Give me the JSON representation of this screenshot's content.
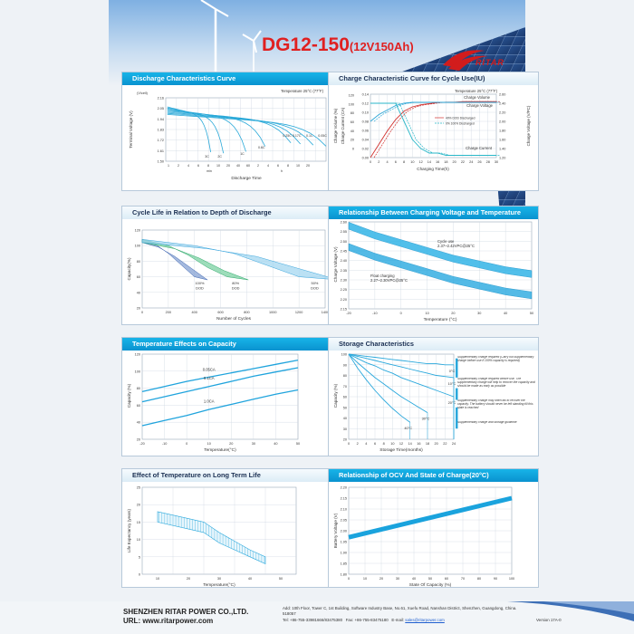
{
  "header": {
    "model": "DG12-150",
    "spec": "(12V150Ah)",
    "brand": "RITAR"
  },
  "panels": {
    "discharge": {
      "title": "Discharge Characteristics Curve",
      "temperature": "Temperature 25°C (77°F)",
      "yunit": "(V/cell)",
      "ylabel": "Terminal Voltage (V)",
      "yticks": [
        "2.16",
        "2.05",
        "1.94",
        "1.83",
        "1.72",
        "1.61",
        "1.50"
      ],
      "xticks_min": [
        "1",
        "2",
        "4",
        "6",
        "8",
        "10",
        "20",
        "40",
        "60"
      ],
      "xticks_h": [
        "2",
        "4",
        "6",
        "8",
        "10",
        "20"
      ],
      "unit_min": "min",
      "unit_h": "h",
      "xlabel": "Discharge  Time",
      "curve_labels": [
        "3C",
        "2C",
        "1C",
        "0.6C",
        "0.25C",
        "0.17C",
        "0.1C",
        "0.05C"
      ]
    },
    "charge": {
      "title": "Charge Characteristic Curve for Cycle Use(IU)",
      "temperature": "Temperature 25°C (77°F)",
      "ylabel_left1": "Charge Volume (%)",
      "ylabel_left2": "Charge Current (CA)",
      "ylabel_right": "Charge Voltage (V/PC)",
      "yticks_left1": [
        "120",
        "100",
        "80",
        "60",
        "40",
        "20",
        "0"
      ],
      "yticks_left2": [
        "0.14",
        "0.12",
        "0.10",
        "0.08",
        "0.06",
        "0.04",
        "0.02",
        "0.00"
      ],
      "yticks_right": [
        "2.60",
        "2.40",
        "2.20",
        "2.00",
        "1.80",
        "1.60",
        "1.40",
        "1.20"
      ],
      "xticks": [
        "0",
        "2",
        "4",
        "6",
        "8",
        "10",
        "12",
        "14",
        "16",
        "18",
        "20",
        "22",
        "24",
        "26",
        "28",
        "30"
      ],
      "xlabel": "Charging Time(h)",
      "labels": {
        "volume": "Charge Volume",
        "voltage": "Charge Voltage",
        "current": "Charge Current"
      },
      "legend": [
        "40% DOD Discharged",
        "0% 100% Discharged"
      ]
    },
    "cycle": {
      "title": "Cycle Life in Relation to Depth of Discharge",
      "ylabel": "Capacity(%)",
      "yticks": [
        "120",
        "100",
        "80",
        "60",
        "40",
        "20"
      ],
      "xticks": [
        "0",
        "200",
        "400",
        "600",
        "800",
        "1000",
        "1200",
        "1400"
      ],
      "xlabel": "Number of Cycles",
      "dod": [
        {
          "pct": "100%",
          "label": "DOD"
        },
        {
          "pct": "80%",
          "label": "DOD"
        },
        {
          "pct": "50%",
          "label": "DOD"
        }
      ]
    },
    "chargingvoltage": {
      "title": "Relationship Between Charging Voltage and Temperature",
      "ylabel": "Charge Voltage (V)",
      "yticks": [
        "2.60",
        "2.55",
        "2.50",
        "2.45",
        "2.40",
        "2.35",
        "2.30",
        "2.25",
        "2.20",
        "2.15"
      ],
      "xticks": [
        "-20",
        "-10",
        "0",
        "10",
        "20",
        "30",
        "40",
        "50"
      ],
      "xlabel": "Temperature (°C)",
      "cycle_label": "Cycle use",
      "cycle_range": "2.37~2.42VPC@25°C",
      "float_label": "Float charging",
      "float_range": "2.27~2.30VPC@25°C"
    },
    "tempcap": {
      "title": "Temperature Effects on Capacity",
      "ylabel": "Capacity (%)",
      "yticks": [
        "120",
        "100",
        "80",
        "60",
        "40",
        "20"
      ],
      "xticks": [
        "-20",
        "-10",
        "0",
        "10",
        "20",
        "30",
        "40",
        "50"
      ],
      "xlabel": "Temperature(°C)",
      "series": [
        "0.05CA",
        "0.1CA",
        "1.0CA"
      ]
    },
    "storage": {
      "title": "Storage Characteristics",
      "ylabel": "Capacity (%)",
      "yticks": [
        "100",
        "90",
        "80",
        "70",
        "60",
        "50",
        "40",
        "30",
        "20"
      ],
      "xticks": [
        "0",
        "2",
        "4",
        "6",
        "8",
        "10",
        "12",
        "14",
        "16",
        "18",
        "20",
        "22",
        "24"
      ],
      "xlabel": "Storage  Time(months)",
      "temps": [
        "40°C",
        "30°C",
        "20°C",
        "10°C",
        "0°C"
      ],
      "notes": [
        "Supplementary charge required (Carry out supplementary charge before use if 100% capacity is required)",
        "Supplementary charge required before use. The supplementary charge will help to recover the capacity and should be made as early as possible",
        "Supplementary charge may often fail to recover the capacity. The battery should never be left standing till this state is reached",
        "Supplementary charge and storage guideline"
      ]
    },
    "longterm": {
      "title": "Effect of Temperature on Long Term Life",
      "ylabel": "Life Expectancy (years)",
      "yticks": [
        "25",
        "20",
        "15",
        "10",
        "5",
        "0"
      ],
      "xticks": [
        "10",
        "20",
        "30",
        "40",
        "50"
      ],
      "xlabel": "Temperature(°C)"
    },
    "ocv": {
      "title": "Relationship of OCV And State of Charge(20°C)",
      "ylabel": "Battery Voltage (V)",
      "yticks": [
        "2.20",
        "2.15",
        "2.10",
        "2.05",
        "2.00",
        "1.95",
        "1.90",
        "1.85",
        "1.80"
      ],
      "xticks": [
        "0",
        "10",
        "20",
        "30",
        "40",
        "50",
        "60",
        "70",
        "80",
        "90",
        "100"
      ],
      "xlabel": "State Of Capacity (%)"
    }
  },
  "footer": {
    "company": "SHENZHEN RITAR POWER CO.,LTD.",
    "url": "URL: www.ritarpower.com",
    "address": "Add: 10th Floor, Tower C, 1st Building, Software Industry Base, No.61, Xuefu Road, Nanshan District, Shenzhen, Guangdong, China. 518057",
    "tel": "Tel: +86-755-33981666/83475380",
    "fax": "Fax: +86-755-83475180",
    "email_label": "E-mail:",
    "email": "sales@ritarpower.com",
    "version": "Version 17A-0"
  },
  "chart_data": [
    {
      "type": "line",
      "title": "Discharge Characteristics Curve",
      "ylabel": "Terminal Voltage (V)",
      "xlabel": "Discharge  Time",
      "ylim": [
        1.5,
        2.2
      ],
      "series": [
        {
          "name": "3C",
          "end_voltage": 1.6
        },
        {
          "name": "2C",
          "end_voltage": 1.6
        },
        {
          "name": "1C",
          "end_voltage": 1.63
        },
        {
          "name": "0.6C",
          "end_voltage": 1.7
        },
        {
          "name": "0.25C",
          "end_voltage": 1.75
        },
        {
          "name": "0.17C",
          "end_voltage": 1.75
        },
        {
          "name": "0.1C",
          "end_voltage": 1.75
        },
        {
          "name": "0.05C",
          "end_voltage": 1.75
        }
      ]
    },
    {
      "type": "line",
      "title": "Charge Characteristic Curve for Cycle Use(IU)",
      "xlabel": "Charging Time(h)",
      "x": [
        0,
        2,
        4,
        6,
        8,
        10,
        12,
        14,
        16,
        18,
        20,
        22,
        24,
        26,
        28,
        30
      ],
      "series": [
        {
          "name": "Charge Volume",
          "values": [
            0,
            25,
            50,
            72,
            88,
            96,
            100,
            102,
            104,
            105,
            105,
            106,
            106,
            106,
            106,
            106
          ]
        },
        {
          "name": "Charge Voltage",
          "values": [
            2.0,
            2.15,
            2.25,
            2.35,
            2.4,
            2.42,
            2.42,
            2.42,
            2.42,
            2.42,
            2.42,
            2.42,
            2.42,
            2.42,
            2.42,
            2.42
          ]
        },
        {
          "name": "Charge Current",
          "values": [
            0.12,
            0.12,
            0.12,
            0.12,
            0.08,
            0.04,
            0.02,
            0.01,
            0.01,
            0.005,
            0.005,
            0.005,
            0.005,
            0.005,
            0.005,
            0.005
          ]
        }
      ]
    },
    {
      "type": "area",
      "title": "Cycle Life in Relation to Depth of Discharge",
      "xlabel": "Number of Cycles",
      "ylabel": "Capacity(%)",
      "xlim": [
        0,
        1400
      ],
      "ylim": [
        20,
        120
      ],
      "series": [
        {
          "name": "100% DOD",
          "x": [
            0,
            100,
            200,
            300,
            400
          ],
          "values": [
            108,
            102,
            90,
            75,
            60
          ]
        },
        {
          "name": "80% DOD",
          "x": [
            0,
            200,
            350,
            500,
            650
          ],
          "values": [
            108,
            100,
            88,
            72,
            60
          ]
        },
        {
          "name": "50% DOD",
          "x": [
            0,
            400,
            700,
            950,
            1200
          ],
          "values": [
            108,
            100,
            90,
            75,
            60
          ]
        }
      ]
    },
    {
      "type": "area",
      "title": "Relationship Between Charging Voltage and Temperature",
      "xlabel": "Temperature (°C)",
      "ylabel": "Charge Voltage (V)",
      "x": [
        -20,
        -10,
        0,
        10,
        20,
        30,
        40,
        50
      ],
      "ylim": [
        2.15,
        2.6
      ],
      "series": [
        {
          "name": "Cycle use",
          "values": [
            2.58,
            2.53,
            2.49,
            2.45,
            2.41,
            2.38,
            2.35,
            2.33
          ]
        },
        {
          "name": "Float charging",
          "values": [
            2.47,
            2.42,
            2.38,
            2.34,
            2.3,
            2.27,
            2.24,
            2.22
          ]
        }
      ]
    },
    {
      "type": "line",
      "title": "Temperature Effects on Capacity",
      "xlabel": "Temperature(°C)",
      "ylabel": "Capacity (%)",
      "x": [
        -20,
        -10,
        0,
        10,
        20,
        30,
        40,
        50
      ],
      "ylim": [
        20,
        120
      ],
      "series": [
        {
          "name": "0.05CA",
          "values": [
            76,
            82,
            88,
            93,
            98,
            103,
            108,
            113
          ]
        },
        {
          "name": "0.1CA",
          "values": [
            64,
            70,
            76,
            82,
            88,
            94,
            99,
            104
          ]
        },
        {
          "name": "1.0CA",
          "values": [
            36,
            42,
            48,
            55,
            61,
            67,
            73,
            78
          ]
        }
      ]
    },
    {
      "type": "line",
      "title": "Storage Characteristics",
      "xlabel": "Storage  Time(months)",
      "ylabel": "Capacity (%)",
      "x": [
        0,
        2,
        4,
        6,
        8,
        10,
        12,
        14,
        16,
        18,
        20,
        22,
        24
      ],
      "ylim": [
        20,
        100
      ],
      "series": [
        {
          "name": "40°C",
          "values": [
            100,
            87,
            76,
            66,
            57,
            49,
            42,
            36,
            null,
            null,
            null,
            null,
            null
          ]
        },
        {
          "name": "30°C",
          "values": [
            100,
            92,
            85,
            78,
            72,
            66,
            60,
            55,
            50,
            45,
            null,
            null,
            null
          ]
        },
        {
          "name": "20°C",
          "values": [
            100,
            96,
            92,
            89,
            85,
            82,
            78,
            75,
            72,
            69,
            66,
            63,
            60
          ]
        },
        {
          "name": "10°C",
          "values": [
            100,
            98,
            96,
            94,
            92,
            90,
            88,
            86,
            84,
            82,
            80,
            79,
            78
          ]
        },
        {
          "name": "0°C",
          "values": [
            100,
            99,
            98,
            97,
            96,
            95,
            94,
            93,
            92,
            91,
            91,
            90,
            90
          ]
        }
      ]
    },
    {
      "type": "area",
      "title": "Effect of Temperature on Long Term Life",
      "xlabel": "Temperature(°C)",
      "ylabel": "Life Expectancy (years)",
      "x": [
        10,
        20,
        25,
        30,
        40,
        45
      ],
      "ylim": [
        0,
        25
      ],
      "series": [
        {
          "name": "upper",
          "values": [
            18,
            16,
            15,
            12,
            7,
            5
          ]
        },
        {
          "name": "lower",
          "values": [
            15,
            13,
            12,
            9,
            5,
            3
          ]
        }
      ]
    },
    {
      "type": "line",
      "title": "Relationship of OCV And State of Charge(20°C)",
      "xlabel": "State Of Capacity (%)",
      "ylabel": "Battery Voltage (V)",
      "x": [
        0,
        100
      ],
      "ylim": [
        1.8,
        2.2
      ],
      "series": [
        {
          "name": "OCV",
          "values": [
            1.97,
            2.15
          ]
        }
      ]
    }
  ]
}
